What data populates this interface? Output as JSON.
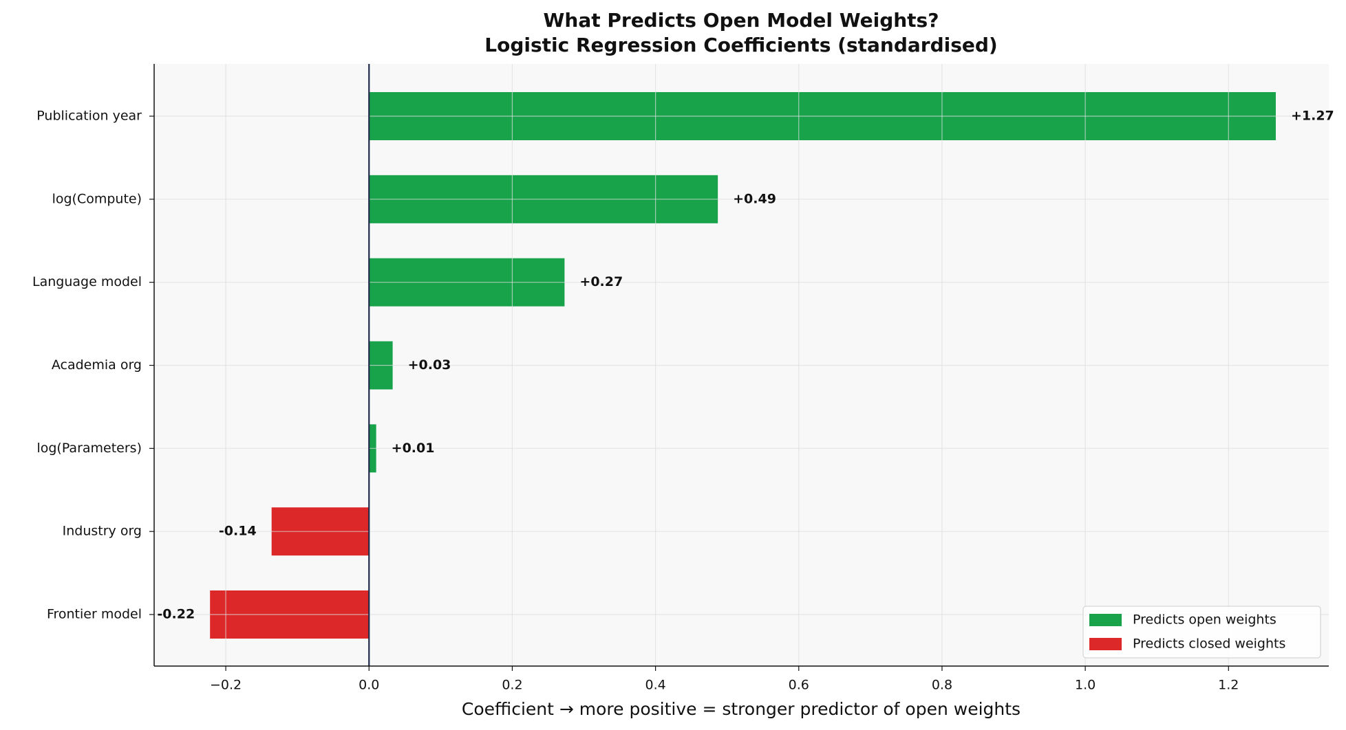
{
  "chart_data": {
    "type": "barh",
    "title": "What Predicts Open Model Weights?",
    "subtitle": "Logistic Regression Coefficients (standardised)",
    "x_label": "Coefficient  →  more positive = stronger predictor of open weights",
    "categories": [
      "Publication year",
      "log(Compute)",
      "Language model",
      "Academia org",
      "log(Parameters)",
      "Industry org",
      "Frontier model"
    ],
    "values": [
      1.266,
      0.487,
      0.273,
      0.033,
      0.01,
      -0.136,
      -0.222
    ],
    "value_labels": [
      "+1.27",
      "+0.49",
      "+0.27",
      "+0.03",
      "+0.01",
      "-0.14",
      "-0.22"
    ],
    "positive_color": "#18a34b",
    "negative_color": "#dc2828",
    "xlim": [
      -0.3,
      1.34
    ],
    "xticks": [
      {
        "value": -0.2,
        "label": "−0.2"
      },
      {
        "value": 0,
        "label": "0.0"
      },
      0.2,
      0.4,
      0.6,
      0.8,
      {
        "value": 1,
        "label": "1.0"
      },
      1.2
    ],
    "grid": true,
    "legend": {
      "position": "lower right",
      "entries": [
        "Predicts open weights",
        "Predicts closed weights"
      ]
    }
  }
}
